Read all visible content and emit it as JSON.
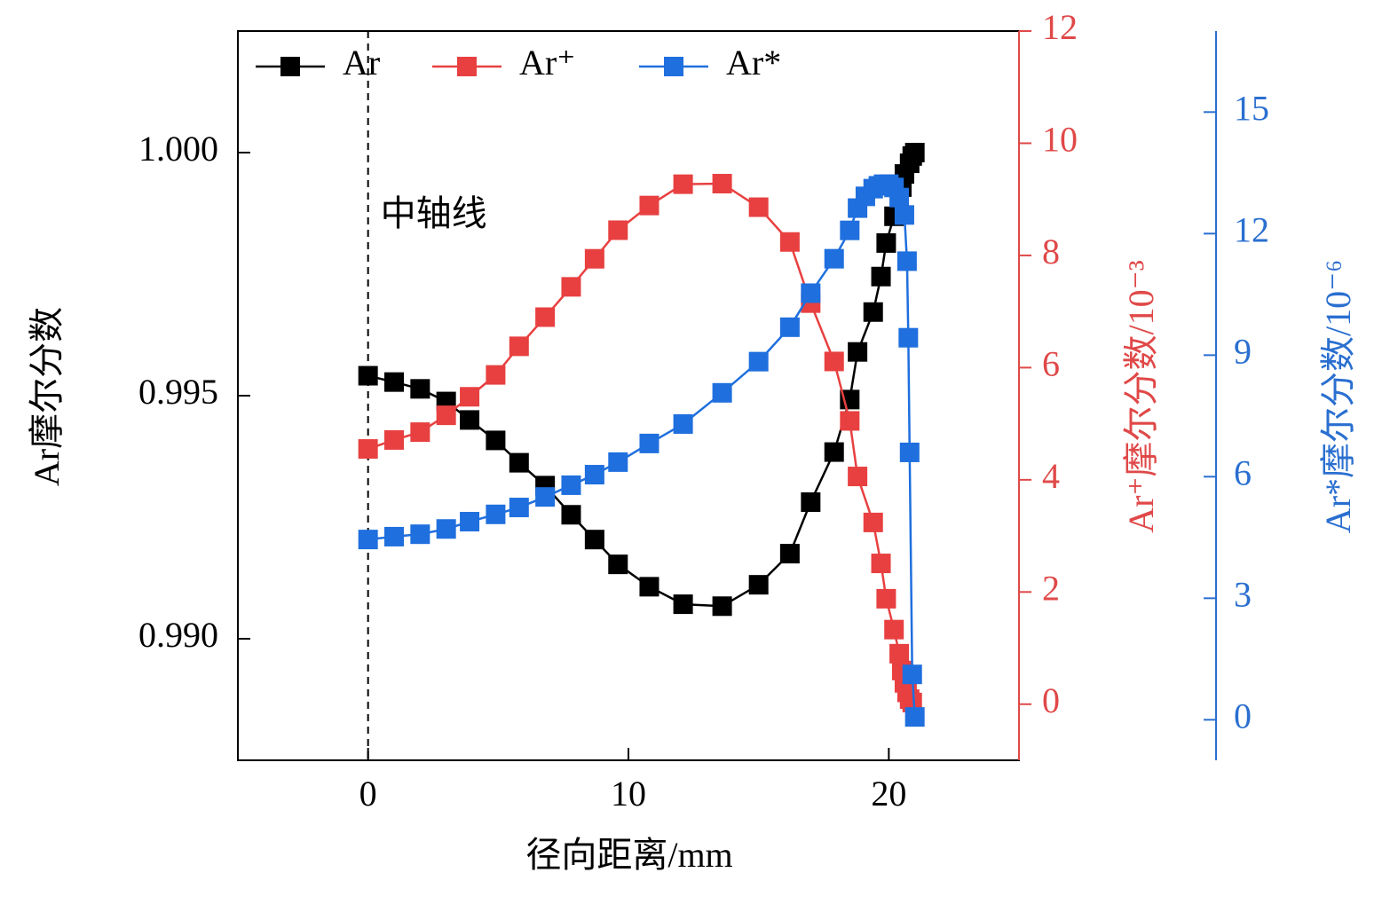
{
  "chart_data": {
    "type": "line",
    "x_label": "径向距离/mm",
    "y_label": "Ar摩尔分数",
    "y2_label": "Ar⁺摩尔分数/10⁻³",
    "y3_label": "Ar*摩尔分数/10⁻⁶",
    "annotation": {
      "text": "中轴线",
      "x": 0
    },
    "xlim": [
      -5,
      25
    ],
    "xticks": [
      0,
      10,
      20
    ],
    "ylim": [
      0.9875,
      1.0025
    ],
    "yticks": [
      {
        "value": 0.99,
        "label": "0.990"
      },
      {
        "value": 0.995,
        "label": "0.995"
      },
      {
        "value": 1.0,
        "label": "1.000"
      }
    ],
    "y2lim": [
      -1,
      12
    ],
    "y2ticks": [
      0,
      2,
      4,
      6,
      8,
      10,
      12
    ],
    "y2color": "#e04848",
    "y3lim": [
      -1,
      17
    ],
    "y3ticks": [
      0,
      3,
      6,
      9,
      12,
      15
    ],
    "y3color": "#2a6fd0",
    "legend": "upper left",
    "series": [
      {
        "name": "Ar",
        "color": "#000000",
        "axis": "y",
        "x": [
          0,
          1,
          2,
          3,
          3.9,
          4.9,
          5.8,
          6.8,
          7.8,
          8.7,
          9.6,
          10.8,
          12.1,
          13.6,
          15.0,
          16.2,
          17.0,
          17.9,
          18.5,
          18.8,
          19.4,
          19.7,
          19.9,
          20.2,
          20.5,
          20.6,
          20.8,
          20.9,
          21.0
        ],
        "values": [
          0.99541,
          0.99528,
          0.99514,
          0.99488,
          0.9945,
          0.99408,
          0.99362,
          0.99315,
          0.99255,
          0.99204,
          0.99153,
          0.99107,
          0.99071,
          0.99067,
          0.99111,
          0.99175,
          0.99281,
          0.99384,
          0.99492,
          0.9959,
          0.99672,
          0.99745,
          0.99814,
          0.99869,
          0.99929,
          0.99956,
          0.99978,
          0.99993,
          1.0
        ]
      },
      {
        "name": "Ar⁺",
        "color": "#e84040",
        "axis": "y2",
        "x": [
          0,
          1,
          2,
          3,
          3.9,
          4.9,
          5.8,
          6.8,
          7.8,
          8.7,
          9.6,
          10.8,
          12.1,
          13.6,
          15.0,
          16.2,
          17.0,
          17.9,
          18.5,
          18.8,
          19.4,
          19.7,
          19.9,
          20.2,
          20.4,
          20.5,
          20.6,
          20.7,
          20.8,
          20.9
        ],
        "values": [
          4.55,
          4.71,
          4.85,
          5.15,
          5.48,
          5.87,
          6.38,
          6.9,
          7.44,
          7.94,
          8.45,
          8.89,
          9.27,
          9.28,
          8.86,
          8.24,
          7.15,
          6.11,
          5.05,
          4.06,
          3.24,
          2.51,
          1.88,
          1.33,
          0.9,
          0.6,
          0.38,
          0.21,
          0.09,
          0.03
        ]
      },
      {
        "name": "Ar*",
        "color": "#1f6fde",
        "axis": "y3",
        "x": [
          0,
          1,
          2,
          3,
          3.9,
          4.9,
          5.8,
          6.8,
          7.8,
          8.7,
          9.6,
          10.8,
          12.1,
          13.6,
          15.0,
          16.2,
          17.0,
          17.9,
          18.5,
          18.8,
          19.1,
          19.4,
          19.6,
          19.8,
          20.0,
          20.2,
          20.4,
          20.6,
          20.7,
          20.75,
          20.8,
          20.9,
          21.0
        ],
        "values": [
          4.45,
          4.52,
          4.58,
          4.71,
          4.89,
          5.07,
          5.24,
          5.5,
          5.79,
          6.05,
          6.36,
          6.82,
          7.3,
          8.07,
          8.84,
          9.69,
          10.53,
          11.38,
          12.08,
          12.63,
          12.92,
          13.11,
          13.18,
          13.22,
          13.22,
          13.14,
          12.89,
          12.46,
          11.32,
          9.43,
          6.6,
          1.12,
          0.07
        ]
      }
    ]
  }
}
